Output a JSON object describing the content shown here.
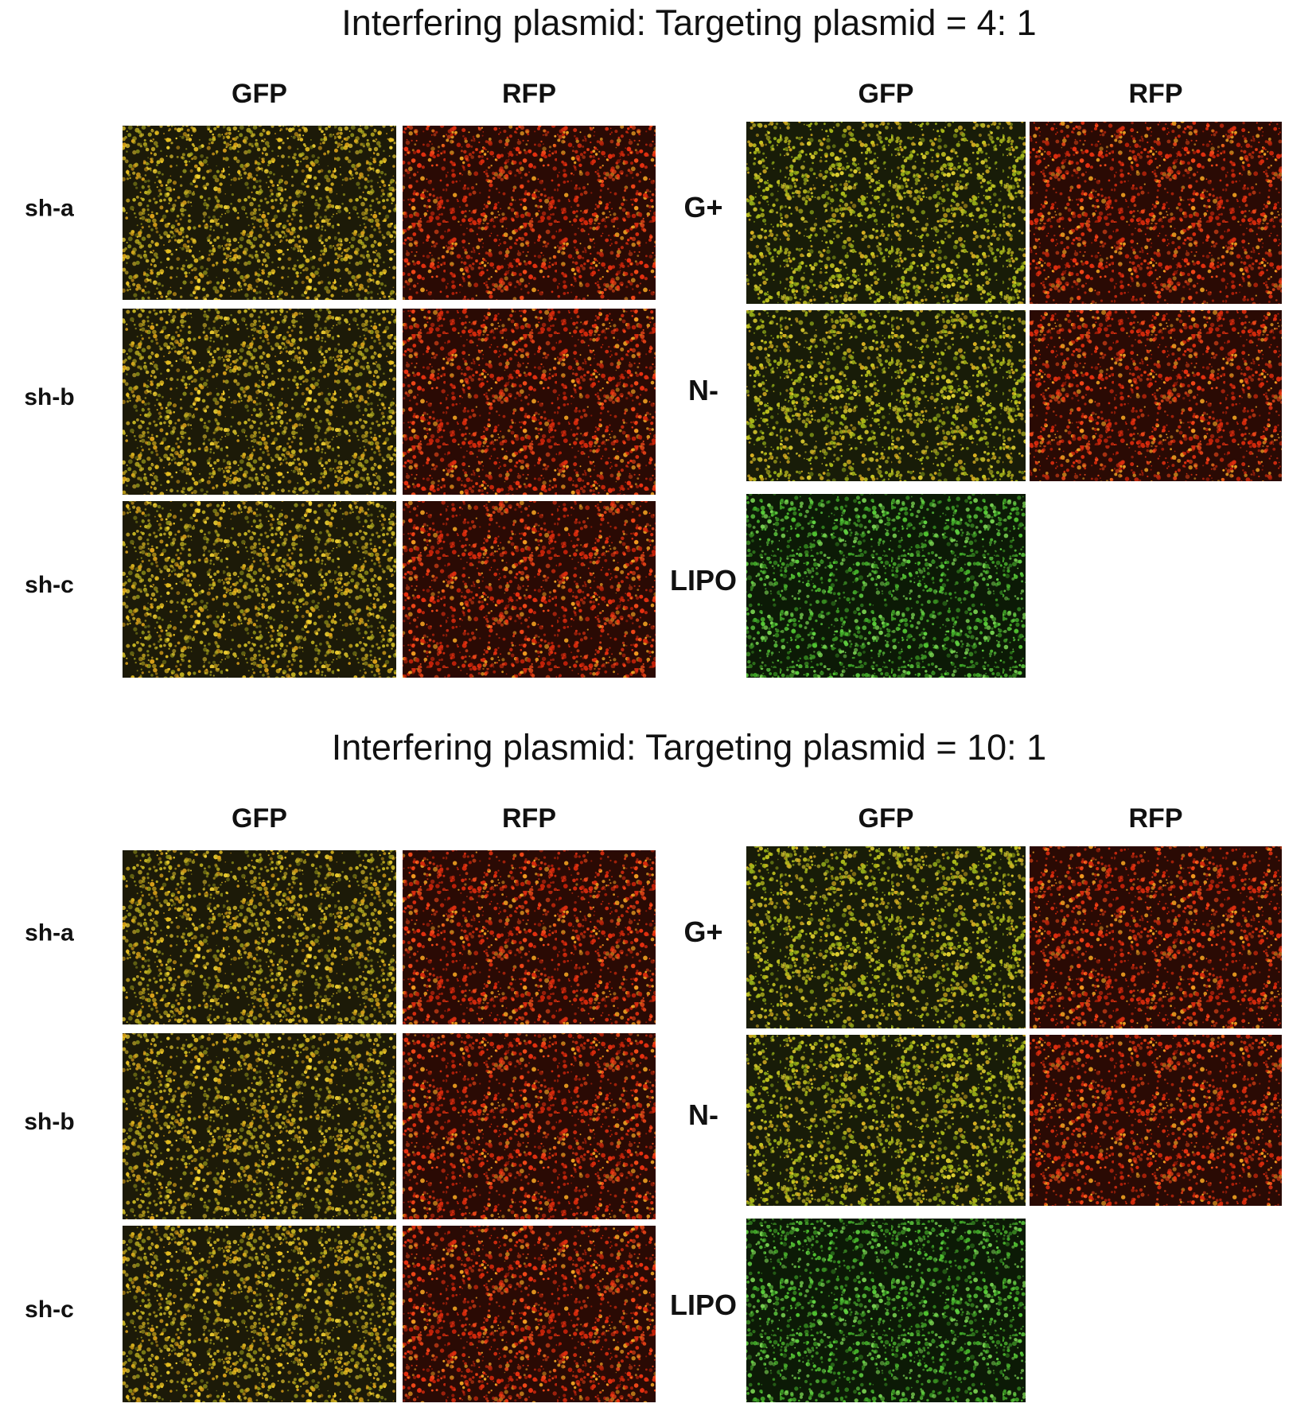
{
  "sections": [
    {
      "title": "Interfering plasmid: Targeting plasmid = 4: 1",
      "left": {
        "columns": [
          "GFP",
          "RFP"
        ],
        "rows": [
          "sh-a",
          "sh-b",
          "sh-c"
        ]
      },
      "right": {
        "columns": [
          "GFP",
          "RFP"
        ],
        "rows": [
          "G+",
          "N-",
          "LIPO"
        ]
      }
    },
    {
      "title": "Interfering plasmid: Targeting plasmid = 10: 1",
      "left": {
        "columns": [
          "GFP",
          "RFP"
        ],
        "rows": [
          "sh-a",
          "sh-b",
          "sh-c"
        ]
      },
      "right": {
        "columns": [
          "GFP",
          "RFP"
        ],
        "rows": [
          "G+",
          "N-",
          "LIPO"
        ]
      }
    }
  ]
}
